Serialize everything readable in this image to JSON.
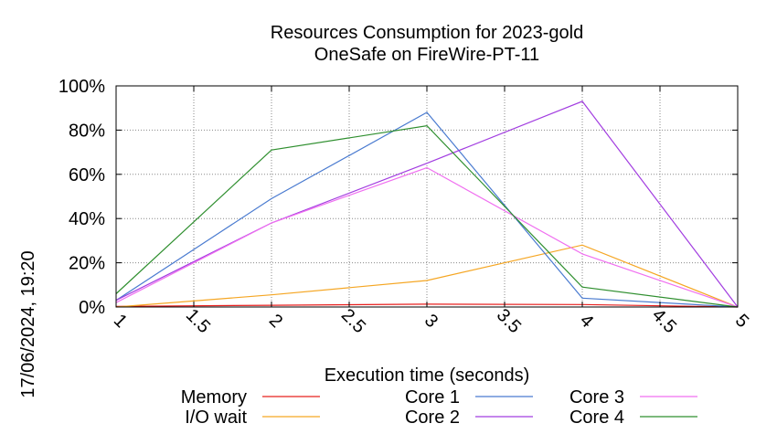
{
  "chart_data": {
    "type": "line",
    "title": "Resources Consumption for 2023-gold",
    "subtitle": "OneSafe on FireWire-PT-11",
    "xlabel": "Execution time (seconds)",
    "ylabel": "",
    "side_label": "17/06/2024, 19:20",
    "xlim": [
      1,
      5
    ],
    "ylim": [
      0,
      100
    ],
    "x_ticks": [
      1,
      1.5,
      2,
      2.5,
      3,
      3.5,
      4,
      4.5,
      5
    ],
    "x_tick_labels": [
      "1",
      "1.5",
      "2",
      "2.5",
      "3",
      "3.5",
      "4",
      "4.5",
      "5"
    ],
    "y_ticks": [
      0,
      20,
      40,
      60,
      80,
      100
    ],
    "y_tick_labels": [
      "0%",
      "20%",
      "40%",
      "60%",
      "80%",
      "100%"
    ],
    "grid": true,
    "legend_position": "bottom",
    "x": [
      1,
      2,
      3,
      4,
      5
    ],
    "series": [
      {
        "name": "Memory",
        "color": "#e8201f",
        "values": [
          0.3,
          0.8,
          1.3,
          1.1,
          0
        ]
      },
      {
        "name": "I/O wait",
        "color": "#f5a623",
        "values": [
          0,
          5.5,
          12,
          28,
          0
        ]
      },
      {
        "name": "Core 1",
        "color": "#4a7bd0",
        "values": [
          3,
          49,
          88,
          4,
          0
        ]
      },
      {
        "name": "Core 2",
        "color": "#a23de0",
        "values": [
          3,
          38,
          65,
          93,
          0
        ]
      },
      {
        "name": "Core 3",
        "color": "#f06ff0",
        "values": [
          2,
          38,
          63,
          24,
          0
        ]
      },
      {
        "name": "Core 4",
        "color": "#2f8f2f",
        "values": [
          6,
          71,
          82,
          9,
          0
        ]
      }
    ]
  }
}
